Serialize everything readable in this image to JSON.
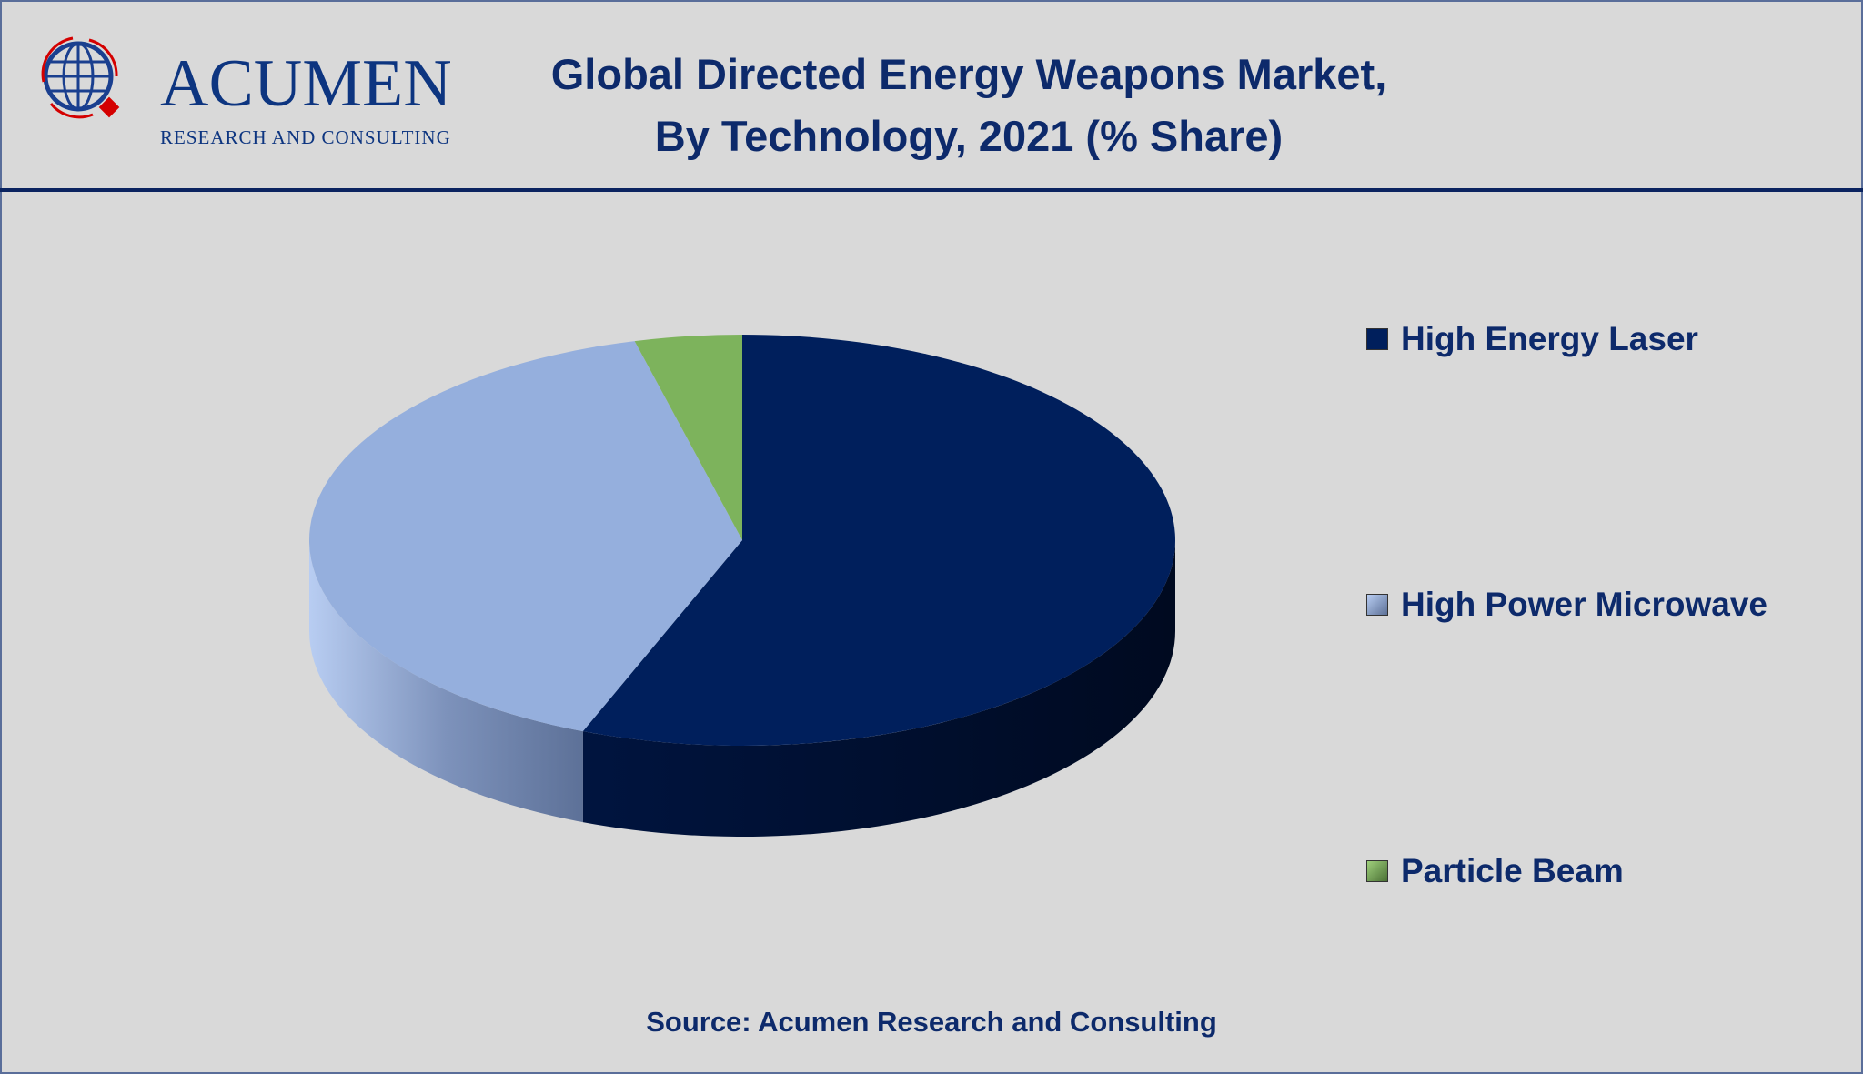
{
  "header": {
    "logo": {
      "name": "ACUMEN",
      "tagline": "RESEARCH AND CONSULTING"
    },
    "title_line1": "Global Directed Energy Weapons Market,",
    "title_line2": "By Technology, 2021 (% Share)"
  },
  "chart_data": {
    "type": "pie",
    "style": "3d",
    "title": "Global Directed Energy Weapons Market, By Technology, 2021 (% Share)",
    "categories": [
      "High Energy Laser",
      "High Power Microwave",
      "Particle Beam"
    ],
    "values": [
      56,
      40,
      4
    ],
    "unit": "%",
    "colors": [
      "#001f5c",
      "#95afdd",
      "#7db35c"
    ],
    "legend_position": "right"
  },
  "legend": [
    {
      "label": "High Energy Laser",
      "color": "#001f5c"
    },
    {
      "label": "High Power Microwave",
      "color": "#95afdd"
    },
    {
      "label": "Particle Beam",
      "color": "#7db35c"
    }
  ],
  "footer": {
    "source": "Source: Acumen Research and Consulting"
  }
}
